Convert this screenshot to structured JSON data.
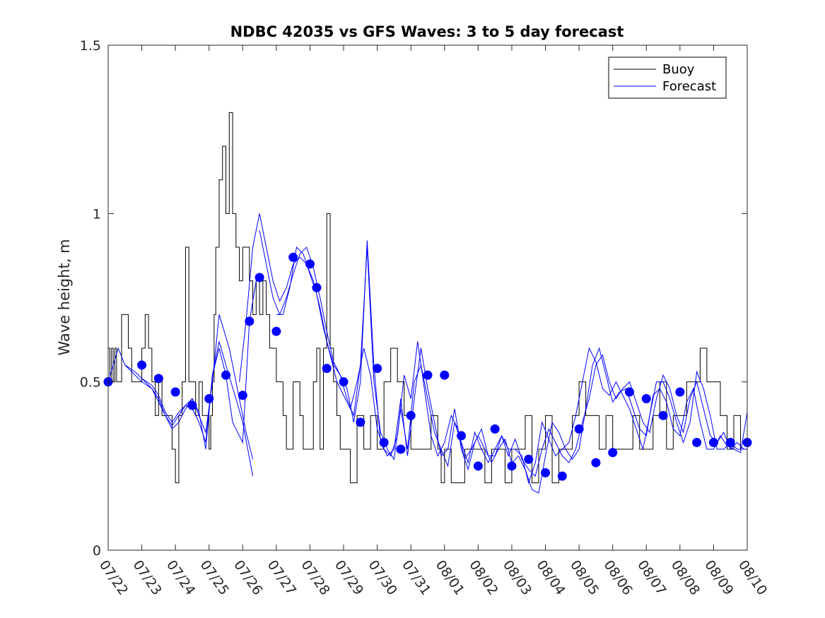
{
  "chart_data": {
    "type": "line",
    "title": "NDBC 42035 vs GFS Waves: 3 to 5 day forecast",
    "xlabel": "",
    "ylabel": "Wave height, m",
    "ylim": [
      0,
      1.5
    ],
    "xlim": [
      "07/22",
      "08/10"
    ],
    "yticks": [
      0,
      0.5,
      1,
      1.5
    ],
    "ytick_labels": [
      "0",
      "0.5",
      "1",
      "1.5"
    ],
    "xtick_labels": [
      "07/22",
      "07/23",
      "07/24",
      "07/25",
      "07/26",
      "07/27",
      "07/28",
      "07/29",
      "07/30",
      "07/31",
      "08/01",
      "08/02",
      "08/03",
      "08/04",
      "08/05",
      "08/06",
      "08/07",
      "08/08",
      "08/09",
      "08/10"
    ],
    "x_unit": "days",
    "grid": false,
    "legend_position": "top-right",
    "legend": [
      {
        "label": "Buoy",
        "color": "#000000"
      },
      {
        "label": "Forecast",
        "color": "#0000ff"
      }
    ],
    "series": [
      {
        "name": "Buoy",
        "color": "#000000",
        "style": "step",
        "x": [
          0,
          0.05,
          0.1,
          0.15,
          0.2,
          0.25,
          0.3,
          0.4,
          0.5,
          0.6,
          0.7,
          0.8,
          1.0,
          1.1,
          1.2,
          1.3,
          1.4,
          1.5,
          1.6,
          1.7,
          1.8,
          1.9,
          2.0,
          2.1,
          2.2,
          2.3,
          2.4,
          2.5,
          2.6,
          2.7,
          2.8,
          2.9,
          3.0,
          3.05,
          3.1,
          3.15,
          3.2,
          3.3,
          3.4,
          3.5,
          3.6,
          3.7,
          3.8,
          3.9,
          4.0,
          4.1,
          4.2,
          4.3,
          4.4,
          4.5,
          4.6,
          4.7,
          4.8,
          4.9,
          5.0,
          5.1,
          5.2,
          5.3,
          5.4,
          5.5,
          5.6,
          5.7,
          5.8,
          5.9,
          6.0,
          6.1,
          6.2,
          6.3,
          6.4,
          6.5,
          6.6,
          6.7,
          6.8,
          6.9,
          7.0,
          7.2,
          7.4,
          7.6,
          7.8,
          8.0,
          8.2,
          8.4,
          8.6,
          8.8,
          9.0,
          9.2,
          9.4,
          9.6,
          9.8,
          9.9,
          10.0,
          10.2,
          10.4,
          10.6,
          10.8,
          11.0,
          11.2,
          11.4,
          11.6,
          11.8,
          12.0,
          12.2,
          12.4,
          12.6,
          12.8,
          13.0,
          13.2,
          13.4,
          13.6,
          13.8,
          14.0,
          14.2,
          14.4,
          14.6,
          14.8,
          15.0,
          15.2,
          15.4,
          15.6,
          15.8,
          16.0,
          16.2,
          16.4,
          16.6,
          16.8,
          17.0,
          17.2,
          17.4,
          17.6,
          17.8,
          18.0,
          18.2,
          18.4,
          18.6,
          18.8,
          19.0
        ],
        "y": [
          0.6,
          0.5,
          0.6,
          0.5,
          0.6,
          0.5,
          0.5,
          0.7,
          0.7,
          0.6,
          0.5,
          0.5,
          0.6,
          0.7,
          0.6,
          0.5,
          0.4,
          0.5,
          0.4,
          0.4,
          0.4,
          0.3,
          0.2,
          0.4,
          0.5,
          0.9,
          0.5,
          0.5,
          0.4,
          0.5,
          0.4,
          0.4,
          0.3,
          0.4,
          0.5,
          0.7,
          0.9,
          1.1,
          1.2,
          1.0,
          1.3,
          1.0,
          0.9,
          0.8,
          0.9,
          0.9,
          0.8,
          0.7,
          0.8,
          0.7,
          0.8,
          0.7,
          0.6,
          0.6,
          0.5,
          0.5,
          0.4,
          0.3,
          0.3,
          0.5,
          0.5,
          0.4,
          0.3,
          0.3,
          0.3,
          0.5,
          0.6,
          0.3,
          0.6,
          1.0,
          0.6,
          0.5,
          0.4,
          0.3,
          0.3,
          0.2,
          0.4,
          0.3,
          0.4,
          0.3,
          0.5,
          0.6,
          0.5,
          0.4,
          0.3,
          0.3,
          0.3,
          0.4,
          0.3,
          0.2,
          0.3,
          0.2,
          0.2,
          0.3,
          0.3,
          0.3,
          0.2,
          0.3,
          0.3,
          0.2,
          0.3,
          0.3,
          0.4,
          0.2,
          0.3,
          0.4,
          0.2,
          0.3,
          0.3,
          0.4,
          0.5,
          0.4,
          0.4,
          0.3,
          0.4,
          0.3,
          0.3,
          0.3,
          0.4,
          0.3,
          0.3,
          0.4,
          0.5,
          0.3,
          0.4,
          0.4,
          0.5,
          0.5,
          0.6,
          0.5,
          0.5,
          0.4,
          0.3,
          0.4,
          0.3,
          0.3
        ]
      },
      {
        "name": "Forecast",
        "color": "#0000ff",
        "style": "multi-run",
        "runs": [
          {
            "x": [
              0,
              0.3,
              0.5,
              0.8,
              1.0,
              1.3,
              1.5,
              1.7,
              1.9,
              2.1,
              2.3,
              2.5,
              2.7,
              2.9,
              3.1,
              3.3,
              3.6,
              3.9,
              4.1,
              4.3
            ],
            "y": [
              0.5,
              0.6,
              0.55,
              0.52,
              0.5,
              0.48,
              0.45,
              0.4,
              0.36,
              0.38,
              0.42,
              0.45,
              0.4,
              0.35,
              0.5,
              0.7,
              0.6,
              0.45,
              0.35,
              0.27
            ]
          },
          {
            "x": [
              0.5,
              0.8,
              1.0,
              1.3,
              1.5,
              1.7,
              1.9,
              2.1,
              2.3,
              2.5,
              2.7,
              2.9,
              3.1,
              3.3,
              3.5,
              3.8,
              4.0,
              4.3
            ],
            "y": [
              0.55,
              0.53,
              0.51,
              0.48,
              0.44,
              0.4,
              0.37,
              0.4,
              0.43,
              0.42,
              0.38,
              0.32,
              0.52,
              0.62,
              0.55,
              0.45,
              0.38,
              0.22
            ]
          },
          {
            "x": [
              1.0,
              1.3,
              1.5,
              1.7,
              1.9,
              2.1,
              2.3,
              2.5,
              2.7,
              2.9,
              3.1,
              3.3,
              3.5,
              3.7,
              4.0,
              4.2,
              4.4
            ],
            "y": [
              0.51,
              0.49,
              0.46,
              0.41,
              0.38,
              0.41,
              0.43,
              0.45,
              0.41,
              0.3,
              0.52,
              0.6,
              0.52,
              0.38,
              0.32,
              0.68,
              0.8
            ]
          },
          {
            "x": [
              3.9,
              4.1,
              4.3,
              4.5,
              4.7,
              4.9,
              5.1,
              5.3,
              5.5,
              5.7,
              5.9,
              6.1,
              6.3,
              6.5,
              6.7,
              6.9,
              7.1,
              7.3,
              7.5,
              7.7,
              7.9,
              8.1,
              8.3,
              8.5,
              8.7,
              8.9,
              9.1,
              9.3,
              9.5,
              9.7,
              9.9,
              10.1,
              10.3,
              10.5,
              10.7,
              10.9,
              11.1,
              11.3,
              11.5,
              11.7,
              11.9,
              12.1,
              12.3,
              12.5,
              12.7,
              12.9,
              13.1,
              13.3,
              13.5,
              13.7,
              13.9,
              14.1,
              14.3,
              14.5,
              14.7,
              14.9,
              15.1,
              15.3,
              15.5,
              15.7,
              15.9,
              16.1,
              16.3,
              16.5,
              16.7,
              16.9,
              17.1,
              17.3,
              17.5,
              17.7,
              17.9,
              18.1,
              18.3,
              18.5,
              18.7,
              18.9,
              19.0
            ],
            "y": [
              0.5,
              0.68,
              0.9,
              1.0,
              0.9,
              0.8,
              0.74,
              0.78,
              0.85,
              0.87,
              0.85,
              0.8,
              0.72,
              0.62,
              0.55,
              0.52,
              0.45,
              0.4,
              0.55,
              0.9,
              0.5,
              0.35,
              0.3,
              0.27,
              0.42,
              0.3,
              0.5,
              0.55,
              0.45,
              0.35,
              0.3,
              0.25,
              0.38,
              0.32,
              0.26,
              0.35,
              0.3,
              0.26,
              0.3,
              0.34,
              0.28,
              0.33,
              0.27,
              0.24,
              0.22,
              0.3,
              0.36,
              0.32,
              0.28,
              0.26,
              0.3,
              0.38,
              0.45,
              0.55,
              0.58,
              0.5,
              0.45,
              0.48,
              0.5,
              0.44,
              0.38,
              0.35,
              0.45,
              0.52,
              0.48,
              0.4,
              0.35,
              0.45,
              0.5,
              0.42,
              0.34,
              0.32,
              0.35,
              0.3,
              0.32,
              0.3,
              0.3
            ]
          },
          {
            "x": [
              4.5,
              4.7,
              4.9,
              5.1,
              5.3,
              5.5,
              5.7,
              5.9,
              6.1,
              6.3,
              6.5,
              6.7,
              6.9,
              7.1,
              7.3,
              7.5,
              7.7,
              7.9,
              8.1,
              8.3,
              8.5,
              8.7,
              8.9,
              9.1,
              9.3,
              9.5,
              9.7,
              9.9,
              10.1,
              10.3,
              10.5,
              10.7,
              10.9,
              11.1,
              11.3,
              11.5,
              11.7,
              11.9,
              12.1,
              12.3,
              12.5,
              12.7,
              12.9,
              13.1,
              13.3,
              13.5,
              13.7,
              13.9,
              14.1,
              14.3,
              14.5,
              14.7,
              14.9,
              15.1,
              15.3,
              15.5,
              15.7,
              15.9,
              16.1,
              16.3,
              16.5,
              16.7,
              16.9,
              17.1,
              17.3,
              17.5,
              17.7,
              17.9,
              18.1,
              18.3,
              18.5,
              18.7,
              18.9,
              19.0
            ],
            "y": [
              0.95,
              0.85,
              0.75,
              0.7,
              0.75,
              0.82,
              0.88,
              0.9,
              0.84,
              0.75,
              0.65,
              0.56,
              0.52,
              0.48,
              0.38,
              0.5,
              0.92,
              0.55,
              0.32,
              0.28,
              0.3,
              0.45,
              0.28,
              0.45,
              0.6,
              0.48,
              0.38,
              0.28,
              0.3,
              0.42,
              0.3,
              0.24,
              0.32,
              0.36,
              0.28,
              0.28,
              0.34,
              0.3,
              0.3,
              0.28,
              0.2,
              0.26,
              0.38,
              0.33,
              0.28,
              0.3,
              0.32,
              0.4,
              0.5,
              0.6,
              0.56,
              0.48,
              0.46,
              0.5,
              0.46,
              0.42,
              0.36,
              0.3,
              0.4,
              0.5,
              0.5,
              0.45,
              0.38,
              0.32,
              0.38,
              0.53,
              0.48,
              0.4,
              0.3,
              0.3,
              0.32,
              0.3,
              0.3,
              0.3
            ]
          },
          {
            "x": [
              5.0,
              5.2,
              5.4,
              5.6,
              5.8,
              6.0,
              6.2,
              6.4,
              6.6,
              6.8,
              7.0,
              7.2,
              7.4,
              7.6,
              7.8,
              8.0,
              8.2,
              8.4,
              8.6,
              8.8,
              9.0,
              9.2,
              9.4,
              9.6,
              9.8,
              10.0,
              10.2,
              10.4,
              10.6,
              10.8,
              11.0,
              11.2,
              11.4,
              11.6,
              11.8,
              12.0,
              12.2,
              12.4,
              12.6,
              12.8,
              13.0,
              13.2,
              13.4,
              13.6,
              13.8,
              14.0,
              14.2,
              14.4,
              14.6,
              14.8,
              15.0,
              15.2,
              15.4,
              15.6,
              15.8,
              16.0,
              16.2,
              16.4,
              16.6,
              16.8,
              17.0,
              17.2,
              17.4,
              17.6,
              17.8,
              18.0,
              18.2,
              18.4,
              18.6,
              18.8,
              19.0
            ],
            "y": [
              0.7,
              0.7,
              0.78,
              0.9,
              0.88,
              0.82,
              0.76,
              0.66,
              0.58,
              0.5,
              0.46,
              0.42,
              0.5,
              0.6,
              0.52,
              0.36,
              0.3,
              0.28,
              0.34,
              0.52,
              0.45,
              0.62,
              0.48,
              0.34,
              0.28,
              0.32,
              0.4,
              0.36,
              0.27,
              0.3,
              0.34,
              0.3,
              0.26,
              0.3,
              0.33,
              0.26,
              0.28,
              0.24,
              0.18,
              0.17,
              0.28,
              0.38,
              0.35,
              0.3,
              0.27,
              0.3,
              0.42,
              0.55,
              0.6,
              0.52,
              0.44,
              0.47,
              0.48,
              0.42,
              0.36,
              0.34,
              0.46,
              0.48,
              0.44,
              0.36,
              0.34,
              0.44,
              0.48,
              0.38,
              0.3,
              0.3,
              0.34,
              0.31,
              0.3,
              0.29,
              0.41
            ]
          }
        ],
        "markers": {
          "x": [
            0,
            1,
            1.5,
            2,
            2.5,
            3,
            3.5,
            4,
            4.2,
            4.5,
            5,
            5.5,
            6,
            6.2,
            6.5,
            7,
            7.5,
            8,
            8.2,
            8.7,
            9,
            9.5,
            10,
            10.5,
            11,
            11.5,
            12,
            12.5,
            13,
            13.5,
            14,
            14.5,
            15,
            15.5,
            16,
            16.5,
            17,
            17.5,
            18,
            18.5,
            19
          ],
          "y": [
            0.5,
            0.55,
            0.51,
            0.47,
            0.43,
            0.45,
            0.52,
            0.46,
            0.68,
            0.81,
            0.65,
            0.87,
            0.85,
            0.78,
            0.54,
            0.5,
            0.38,
            0.54,
            0.32,
            0.3,
            0.4,
            0.52,
            0.52,
            0.34,
            0.25,
            0.36,
            0.25,
            0.27,
            0.23,
            0.22,
            0.36,
            0.26,
            0.29,
            0.47,
            0.45,
            0.4,
            0.47,
            0.32,
            0.32,
            0.32,
            0.32
          ]
        }
      }
    ]
  }
}
